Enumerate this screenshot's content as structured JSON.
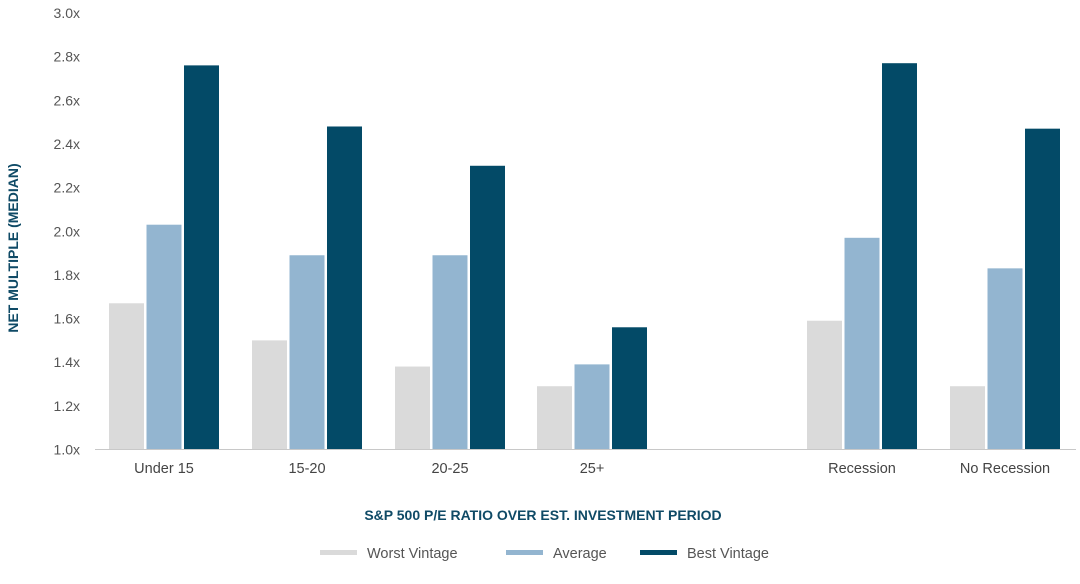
{
  "chart_data": {
    "type": "bar",
    "categories": [
      "Under 15",
      "15-20",
      "20-25",
      "25+",
      "Recession",
      "No Recession"
    ],
    "series": [
      {
        "name": "Worst Vintage",
        "color": "#dadada",
        "values": [
          1.67,
          1.5,
          1.38,
          1.29,
          1.59,
          1.29
        ]
      },
      {
        "name": "Average",
        "color": "#93b5d0",
        "values": [
          2.03,
          1.89,
          1.89,
          1.39,
          1.97,
          1.83
        ]
      },
      {
        "name": "Best Vintage",
        "color": "#034a67",
        "values": [
          2.76,
          2.48,
          2.3,
          1.56,
          2.77,
          2.47
        ]
      }
    ],
    "xlabel": "S&P 500 P/E RATIO OVER EST. INVESTMENT PERIOD",
    "ylabel": "NET MULTIPLE (MEDIAN)",
    "ylim": [
      1.0,
      3.0
    ],
    "yticks": [
      "1.0x",
      "1.2x",
      "1.4x",
      "1.6x",
      "1.8x",
      "2.0x",
      "2.2x",
      "2.4x",
      "2.6x",
      "2.8x",
      "3.0x"
    ],
    "grid": false,
    "legend_position": "bottom-center"
  }
}
